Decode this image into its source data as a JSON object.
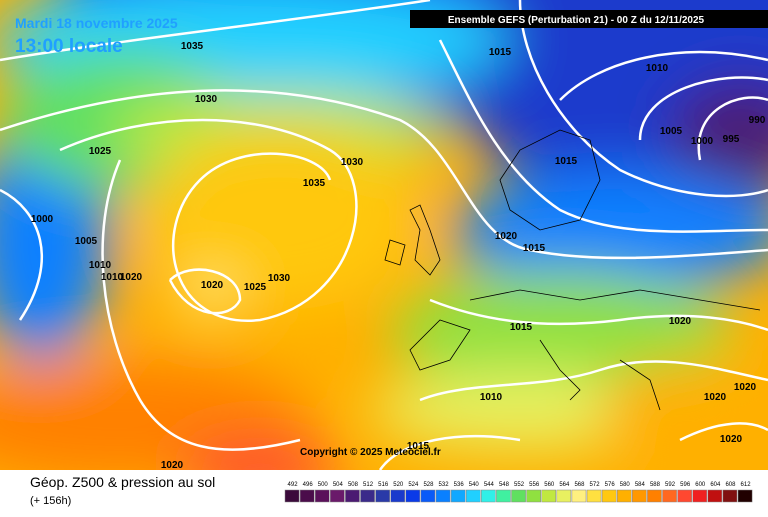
{
  "header": {
    "date": "Mardi 18 novembre 2025",
    "time": "13:00 locale",
    "model": "Ensemble GEFS  (Perturbation 21)  -  00 Z du 12/11/2025"
  },
  "copyright": "Copyright © 2025 Meteociel.fr",
  "footer": {
    "title": "Géop. Z500 & pression au sol",
    "lead": "(+ 156h)"
  },
  "isobars": {
    "labels": [
      1035,
      1015,
      1010,
      1030,
      1005,
      1000,
      995,
      990,
      1025,
      1030,
      1015,
      1035,
      1000,
      1005,
      1020,
      1015,
      1010,
      1010,
      1020,
      1030,
      1020,
      1025,
      1020,
      1015,
      1020,
      1010,
      1020,
      1020,
      1015,
      1020
    ]
  },
  "legend": {
    "scale": [
      492,
      496,
      500,
      504,
      508,
      512,
      516,
      520,
      524,
      528,
      532,
      536,
      540,
      544,
      548,
      552,
      556,
      560,
      564,
      568,
      572,
      576,
      580,
      584,
      588,
      592,
      596,
      600,
      604,
      608,
      612
    ],
    "colors": [
      "#3b0a3b",
      "#4b0c4b",
      "#5a105a",
      "#6a1a6a",
      "#4b1a72",
      "#3b2a8a",
      "#2a3aa8",
      "#1a3acc",
      "#0a3ae8",
      "#0a5af8",
      "#0a80ff",
      "#10a8ff",
      "#20d0ff",
      "#30f0e8",
      "#40f0a0",
      "#60e060",
      "#90e040",
      "#c0e840",
      "#e8f060",
      "#fff080",
      "#ffe040",
      "#ffc810",
      "#ffb000",
      "#ff9800",
      "#ff8000",
      "#ff6820",
      "#ff4830",
      "#f02020",
      "#c01010",
      "#801010",
      "#200000"
    ]
  }
}
